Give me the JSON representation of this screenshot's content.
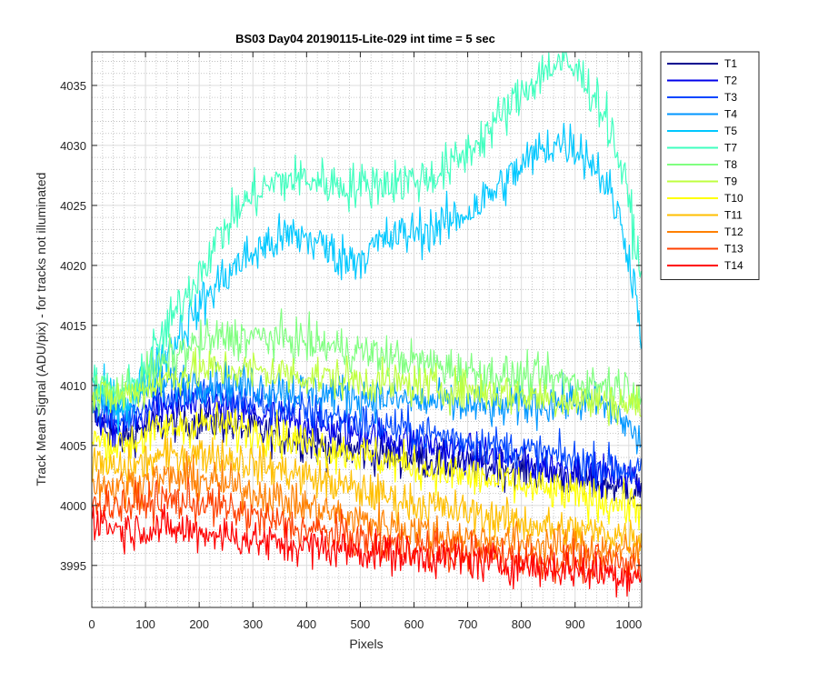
{
  "chart_data": {
    "type": "line",
    "title": "BS03 Day04 20190115-Lite-029 int time = 5 sec",
    "xlabel": "Pixels",
    "ylabel": "Track Mean Signal (ADU/pix) - for tracks not illuminated",
    "xlim": [
      0,
      1024
    ],
    "ylim": [
      3991.5,
      4037.8
    ],
    "x_ticks": [
      0,
      100,
      200,
      300,
      400,
      500,
      600,
      700,
      800,
      900,
      1000
    ],
    "y_ticks": [
      3995,
      4000,
      4005,
      4010,
      4015,
      4020,
      4025,
      4030,
      4035
    ],
    "grid": "major and minor, dotted",
    "legend_position": "outside-right-top",
    "x": [
      0,
      25,
      50,
      75,
      100,
      125,
      150,
      175,
      200,
      225,
      250,
      275,
      300,
      325,
      350,
      375,
      400,
      425,
      450,
      475,
      500,
      525,
      550,
      575,
      600,
      625,
      650,
      675,
      700,
      725,
      750,
      775,
      800,
      825,
      850,
      875,
      900,
      925,
      950,
      975,
      1000,
      1024
    ],
    "series": [
      {
        "name": "T1",
        "color": "#00008f",
        "noise": 1.5,
        "values": [
          4007.5,
          4006.5,
          4005.5,
          4006,
          4006.5,
          4006.5,
          4007,
          4007,
          4007,
          4007,
          4006.8,
          4006.5,
          4006.3,
          4006,
          4005.8,
          4005.5,
          4005.3,
          4005,
          4004.8,
          4004.6,
          4004.5,
          4004.3,
          4004.2,
          4004,
          4003.9,
          4003.8,
          4003.6,
          4003.5,
          4003.4,
          4003.3,
          4003.2,
          4003.1,
          4003,
          4002.8,
          4002.6,
          4002.4,
          4002.2,
          4002,
          4001.8,
          4001.6,
          4001.4,
          4001.2
        ]
      },
      {
        "name": "T2",
        "color": "#0000ea",
        "noise": 1.5,
        "values": [
          4008,
          4007,
          4006.2,
          4006.8,
          4007.5,
          4008,
          4008.2,
          4008.3,
          4008.3,
          4008.2,
          4008,
          4007.8,
          4007.6,
          4007.4,
          4007.2,
          4007,
          4006.8,
          4006.6,
          4006.4,
          4006.2,
          4006,
          4005.8,
          4005.6,
          4005.4,
          4005.2,
          4005,
          4004.8,
          4004.6,
          4004.4,
          4004.2,
          4004,
          4003.8,
          4003.6,
          4003.4,
          4003.3,
          4003.2,
          4003,
          4002.8,
          4002.6,
          4002.4,
          4002.2,
          4002
        ]
      },
      {
        "name": "T3",
        "color": "#0046ff",
        "noise": 1.5,
        "values": [
          4008.5,
          4007.8,
          4007,
          4007.5,
          4008.5,
          4009,
          4009.2,
          4009.3,
          4009.3,
          4009.2,
          4009,
          4008.8,
          4008.6,
          4008.4,
          4008.2,
          4008,
          4007.8,
          4007.6,
          4007.4,
          4007.2,
          4007,
          4006.8,
          4006.6,
          4006.4,
          4006.2,
          4006,
          4005.8,
          4005.6,
          4005.4,
          4005.2,
          4005,
          4004.8,
          4004.6,
          4004.4,
          4004.2,
          4004,
          4003.8,
          4003.6,
          4003.4,
          4003.2,
          4003,
          4002.8
        ]
      },
      {
        "name": "T4",
        "color": "#0096ff",
        "noise": 1.6,
        "values": [
          4009,
          4008.5,
          4008,
          4008.5,
          4009.5,
          4010,
          4010.2,
          4010.3,
          4010.3,
          4010.2,
          4010.2,
          4010,
          4010,
          4009.8,
          4009.8,
          4009.6,
          4009.5,
          4009.4,
          4009.3,
          4009.2,
          4009.1,
          4009,
          4008.9,
          4008.8,
          4008.7,
          4008.6,
          4008.5,
          4008.4,
          4008.3,
          4008.2,
          4008.1,
          4008.2,
          4008.3,
          4008.4,
          4008.5,
          4008.6,
          4008.6,
          4008.5,
          4008.3,
          4007.8,
          4006.5,
          4005
        ]
      },
      {
        "name": "T5",
        "color": "#00c8ff",
        "noise": 1.8,
        "values": [
          4009.5,
          4009,
          4008.5,
          4009,
          4010.5,
          4012,
          4013.5,
          4015,
          4016.5,
          4018,
          4019.2,
          4020.2,
          4021,
          4021.7,
          4022.2,
          4022.5,
          4022.3,
          4021.8,
          4021,
          4020.5,
          4020.8,
          4021.5,
          4022.2,
          4022.5,
          4022.8,
          4023,
          4023.3,
          4023.8,
          4024.5,
          4025.3,
          4026.2,
          4027.2,
          4028.2,
          4029.2,
          4030,
          4030.3,
          4030,
          4029,
          4027.5,
          4025,
          4021,
          4014.5
        ]
      },
      {
        "name": "T7",
        "color": "#40ffbf",
        "noise": 1.8,
        "values": [
          4010,
          4009.5,
          4009,
          4009.8,
          4011.5,
          4013.5,
          4015.5,
          4017.5,
          4019.5,
          4021.5,
          4023.2,
          4024.8,
          4025.8,
          4026.5,
          4027,
          4027.2,
          4027.2,
          4027,
          4026.8,
          4026.6,
          4026.6,
          4026.8,
          4027,
          4027,
          4027.1,
          4027.3,
          4027.8,
          4028.5,
          4029.5,
          4030.6,
          4031.8,
          4033,
          4034.3,
          4035.5,
          4036.5,
          4036.8,
          4036.3,
          4035,
          4033.2,
          4030,
          4025.5,
          4018.5
        ]
      },
      {
        "name": "T8",
        "color": "#80ff80",
        "noise": 1.6,
        "values": [
          4009.5,
          4009.5,
          4009.5,
          4010,
          4010.8,
          4011.5,
          4012.3,
          4013,
          4013.5,
          4013.8,
          4014,
          4014,
          4014,
          4014,
          4013.9,
          4013.8,
          4013.6,
          4013.4,
          4013.2,
          4013,
          4012.8,
          4012.6,
          4012.4,
          4012.2,
          4012,
          4011.8,
          4011.6,
          4011.4,
          4011.2,
          4011,
          4010.9,
          4010.8,
          4010.7,
          4010.6,
          4010.5,
          4010.4,
          4010.3,
          4010.2,
          4010.1,
          4010,
          4009.8,
          4009.5
        ]
      },
      {
        "name": "T9",
        "color": "#bfff40",
        "noise": 1.6,
        "values": [
          4009,
          4009,
          4009,
          4009.3,
          4009.8,
          4010.3,
          4010.7,
          4011,
          4011.2,
          4011.3,
          4011.3,
          4011.3,
          4011.2,
          4011.1,
          4011,
          4010.9,
          4010.8,
          4010.7,
          4010.6,
          4010.5,
          4010.4,
          4010.3,
          4010.2,
          4010.1,
          4010,
          4009.9,
          4009.8,
          4009.7,
          4009.6,
          4009.5,
          4009.4,
          4009.3,
          4009.2,
          4009.1,
          4009,
          4008.9,
          4008.8,
          4008.7,
          4008.6,
          4008.5,
          4008.4,
          4008.3
        ]
      },
      {
        "name": "T10",
        "color": "#ffff00",
        "noise": 1.6,
        "values": [
          4005.5,
          4005.2,
          4005,
          4005.3,
          4005.8,
          4006.2,
          4006.5,
          4006.7,
          4006.8,
          4006.8,
          4006.6,
          4006.4,
          4006.2,
          4006,
          4005.8,
          4005.5,
          4005.2,
          4005,
          4004.7,
          4004.5,
          4004.2,
          4004,
          4003.8,
          4003.5,
          4003.3,
          4003,
          4002.8,
          4002.6,
          4002.4,
          4002.2,
          4002,
          4001.8,
          4001.6,
          4001.4,
          4001.2,
          4001,
          4000.8,
          4000.6,
          4000.4,
          4000.2,
          4000,
          3999.8
        ]
      },
      {
        "name": "T11",
        "color": "#ffbf00",
        "noise": 1.5,
        "values": [
          4003.5,
          4003.2,
          4003,
          4003.2,
          4003.6,
          4004,
          4004.2,
          4004.3,
          4004.3,
          4004.2,
          4004,
          4003.8,
          4003.5,
          4003.2,
          4003,
          4002.7,
          4002.4,
          4002.1,
          4001.8,
          4001.5,
          4001.2,
          4001,
          4000.7,
          4000.4,
          4000.2,
          4000,
          3999.8,
          3999.6,
          3999.4,
          3999.2,
          3999,
          3998.8,
          3998.6,
          3998.4,
          3998.2,
          3998,
          3997.9,
          3997.8,
          3997.7,
          3997.6,
          3997.5,
          3997.4
        ]
      },
      {
        "name": "T12",
        "color": "#ff8000",
        "noise": 1.5,
        "values": [
          4002,
          4001.7,
          4001.5,
          4001.7,
          4002,
          4002.2,
          4002.3,
          4002.3,
          4002.2,
          4002,
          4001.7,
          4001.4,
          4001.1,
          4000.8,
          4000.5,
          4000.2,
          3999.9,
          3999.6,
          3999.3,
          3999,
          3998.8,
          3998.6,
          3998.4,
          3998.2,
          3998,
          3997.8,
          3997.6,
          3997.4,
          3997.3,
          3997.2,
          3997.1,
          3997,
          3996.9,
          3996.8,
          3996.7,
          3996.6,
          3996.5,
          3996.4,
          3996.3,
          3996.2,
          3996.1,
          3996
        ]
      },
      {
        "name": "T13",
        "color": "#ff4000",
        "noise": 1.5,
        "values": [
          4000.5,
          4000.2,
          4000,
          4000.1,
          4000.3,
          4000.4,
          4000.4,
          4000.3,
          4000.2,
          4000,
          3999.7,
          3999.4,
          3999.1,
          3998.8,
          3998.5,
          3998.2,
          3998,
          3997.8,
          3997.6,
          3997.4,
          3997.2,
          3997,
          3996.8,
          3996.6,
          3996.5,
          3996.4,
          3996.3,
          3996.2,
          3996.1,
          3996,
          3995.9,
          3995.8,
          3995.7,
          3995.6,
          3995.5,
          3995.4,
          3995.3,
          3995.2,
          3995.1,
          3995,
          3994.9,
          3994.8
        ]
      },
      {
        "name": "T14",
        "color": "#ff0000",
        "noise": 1.5,
        "values": [
          3999,
          3998.5,
          3998,
          3998,
          3998.1,
          3998.1,
          3998,
          3997.9,
          3997.8,
          3997.7,
          3997.5,
          3997.3,
          3997.1,
          3996.9,
          3996.8,
          3996.7,
          3996.6,
          3996.5,
          3996.4,
          3996.3,
          3996.2,
          3996.1,
          3996,
          3995.9,
          3995.8,
          3995.7,
          3995.6,
          3995.5,
          3995.4,
          3995.3,
          3995.2,
          3995.1,
          3995,
          3994.9,
          3994.8,
          3994.7,
          3994.6,
          3994.5,
          3994.4,
          3994.3,
          3994.2,
          3994.1
        ]
      }
    ]
  }
}
